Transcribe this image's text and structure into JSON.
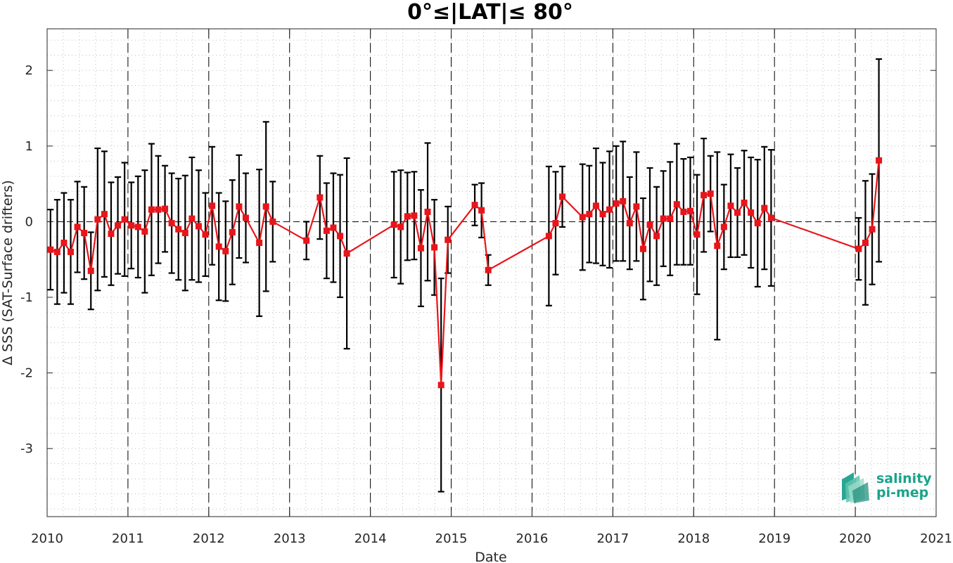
{
  "chart_data": {
    "type": "line",
    "title": "0°≤|LAT|≤ 80°",
    "xlabel": "Date",
    "ylabel": "Δ SSS (SAT-Surface drifters)",
    "xlim": [
      2010,
      2021
    ],
    "ylim": [
      -3.9,
      2.55
    ],
    "x_ticks": [
      "2010",
      "2011",
      "2012",
      "2013",
      "2014",
      "2015",
      "2016",
      "2017",
      "2018",
      "2019",
      "2020",
      "2021"
    ],
    "y_ticks": [
      "2",
      "1",
      "0",
      "-1",
      "-2",
      "-3"
    ],
    "grid": "dotted minor grid",
    "year_separators": "dashed vertical lines at each year",
    "zero_line": "dashed horizontal line at 0",
    "series": [
      {
        "color": "#e8151b",
        "marker": "square",
        "error_bar_color": "#000000",
        "points": [
          {
            "x": "2010-01",
            "y": -0.37,
            "err": 0.53
          },
          {
            "x": "2010-02",
            "y": -0.4,
            "err": 0.69
          },
          {
            "x": "2010-03",
            "y": -0.28,
            "err": 0.66
          },
          {
            "x": "2010-04",
            "y": -0.4,
            "err": 0.69
          },
          {
            "x": "2010-05",
            "y": -0.07,
            "err": 0.6
          },
          {
            "x": "2010-06",
            "y": -0.15,
            "err": 0.61
          },
          {
            "x": "2010-07",
            "y": -0.65,
            "err": 0.51
          },
          {
            "x": "2010-08",
            "y": 0.03,
            "err": 0.94
          },
          {
            "x": "2010-09",
            "y": 0.1,
            "err": 0.83
          },
          {
            "x": "2010-10",
            "y": -0.16,
            "err": 0.68
          },
          {
            "x": "2010-11",
            "y": -0.05,
            "err": 0.64
          },
          {
            "x": "2010-12",
            "y": 0.03,
            "err": 0.75
          },
          {
            "x": "2011-01",
            "y": -0.05,
            "err": 0.57
          },
          {
            "x": "2011-02",
            "y": -0.07,
            "err": 0.67
          },
          {
            "x": "2011-03",
            "y": -0.13,
            "err": 0.81
          },
          {
            "x": "2011-04",
            "y": 0.16,
            "err": 0.87
          },
          {
            "x": "2011-05",
            "y": 0.16,
            "err": 0.71
          },
          {
            "x": "2011-06",
            "y": 0.17,
            "err": 0.57
          },
          {
            "x": "2011-07",
            "y": -0.02,
            "err": 0.66
          },
          {
            "x": "2011-08",
            "y": -0.1,
            "err": 0.67
          },
          {
            "x": "2011-09",
            "y": -0.15,
            "err": 0.76
          },
          {
            "x": "2011-10",
            "y": 0.04,
            "err": 0.81
          },
          {
            "x": "2011-11",
            "y": -0.06,
            "err": 0.74
          },
          {
            "x": "2011-12",
            "y": -0.17,
            "err": 0.55
          },
          {
            "x": "2012-01",
            "y": 0.21,
            "err": 0.78
          },
          {
            "x": "2012-02",
            "y": -0.33,
            "err": 0.71
          },
          {
            "x": "2012-03",
            "y": -0.39,
            "err": 0.66
          },
          {
            "x": "2012-04",
            "y": -0.14,
            "err": 0.69
          },
          {
            "x": "2012-05",
            "y": 0.2,
            "err": 0.68
          },
          {
            "x": "2012-06",
            "y": 0.05,
            "err": 0.59
          },
          {
            "x": "2012-08",
            "y": -0.28,
            "err": 0.97
          },
          {
            "x": "2012-09",
            "y": 0.2,
            "err": 1.12
          },
          {
            "x": "2012-10",
            "y": 0.0,
            "err": 0.53
          },
          {
            "x": "2013-03",
            "y": -0.25,
            "err": 0.25
          },
          {
            "x": "2013-05",
            "y": 0.32,
            "err": 0.55
          },
          {
            "x": "2013-06",
            "y": -0.12,
            "err": 0.63
          },
          {
            "x": "2013-07",
            "y": -0.08,
            "err": 0.72
          },
          {
            "x": "2013-08",
            "y": -0.19,
            "err": 0.81
          },
          {
            "x": "2013-09",
            "y": -0.42,
            "err": 1.26
          },
          {
            "x": "2014-04",
            "y": -0.04,
            "err": 0.7
          },
          {
            "x": "2014-05",
            "y": -0.07,
            "err": 0.75
          },
          {
            "x": "2014-06",
            "y": 0.07,
            "err": 0.58
          },
          {
            "x": "2014-07",
            "y": 0.08,
            "err": 0.58
          },
          {
            "x": "2014-08",
            "y": -0.35,
            "err": 0.77
          },
          {
            "x": "2014-09",
            "y": 0.13,
            "err": 0.91
          },
          {
            "x": "2014-10",
            "y": -0.34,
            "err": 0.63
          },
          {
            "x": "2014-11",
            "y": -2.16,
            "err": 1.41
          },
          {
            "x": "2014-12",
            "y": -0.24,
            "err": 0.44
          },
          {
            "x": "2015-04",
            "y": 0.22,
            "err": 0.27
          },
          {
            "x": "2015-05",
            "y": 0.15,
            "err": 0.36
          },
          {
            "x": "2015-06",
            "y": -0.64,
            "err": 0.2
          },
          {
            "x": "2016-03",
            "y": -0.19,
            "err": 0.92
          },
          {
            "x": "2016-04",
            "y": -0.02,
            "err": 0.68
          },
          {
            "x": "2016-05",
            "y": 0.33,
            "err": 0.4
          },
          {
            "x": "2016-08",
            "y": 0.06,
            "err": 0.7
          },
          {
            "x": "2016-09",
            "y": 0.1,
            "err": 0.64
          },
          {
            "x": "2016-10",
            "y": 0.21,
            "err": 0.76
          },
          {
            "x": "2016-11",
            "y": 0.1,
            "err": 0.68
          },
          {
            "x": "2016-12",
            "y": 0.16,
            "err": 0.77
          },
          {
            "x": "2017-01",
            "y": 0.24,
            "err": 0.76
          },
          {
            "x": "2017-02",
            "y": 0.27,
            "err": 0.79
          },
          {
            "x": "2017-03",
            "y": -0.02,
            "err": 0.61
          },
          {
            "x": "2017-04",
            "y": 0.2,
            "err": 0.72
          },
          {
            "x": "2017-05",
            "y": -0.36,
            "err": 0.67
          },
          {
            "x": "2017-06",
            "y": -0.04,
            "err": 0.75
          },
          {
            "x": "2017-07",
            "y": -0.19,
            "err": 0.65
          },
          {
            "x": "2017-08",
            "y": 0.04,
            "err": 0.63
          },
          {
            "x": "2017-09",
            "y": 0.04,
            "err": 0.75
          },
          {
            "x": "2017-10",
            "y": 0.23,
            "err": 0.8
          },
          {
            "x": "2017-11",
            "y": 0.13,
            "err": 0.7
          },
          {
            "x": "2017-12",
            "y": 0.14,
            "err": 0.71
          },
          {
            "x": "2018-01",
            "y": -0.17,
            "err": 0.79
          },
          {
            "x": "2018-02",
            "y": 0.35,
            "err": 0.75
          },
          {
            "x": "2018-03",
            "y": 0.37,
            "err": 0.5
          },
          {
            "x": "2018-04",
            "y": -0.32,
            "err": 1.24
          },
          {
            "x": "2018-05",
            "y": -0.07,
            "err": 0.56
          },
          {
            "x": "2018-06",
            "y": 0.21,
            "err": 0.68
          },
          {
            "x": "2018-07",
            "y": 0.12,
            "err": 0.59
          },
          {
            "x": "2018-08",
            "y": 0.25,
            "err": 0.69
          },
          {
            "x": "2018-09",
            "y": 0.12,
            "err": 0.73
          },
          {
            "x": "2018-10",
            "y": -0.02,
            "err": 0.84
          },
          {
            "x": "2018-11",
            "y": 0.18,
            "err": 0.81
          },
          {
            "x": "2018-12",
            "y": 0.05,
            "err": 0.9
          },
          {
            "x": "2020-01",
            "y": -0.36,
            "err": 0.41
          },
          {
            "x": "2020-02",
            "y": -0.28,
            "err": 0.82
          },
          {
            "x": "2020-03",
            "y": -0.1,
            "err": 0.73
          },
          {
            "x": "2020-04",
            "y": 0.81,
            "err": 1.34
          }
        ]
      }
    ]
  },
  "logo": {
    "line1": "salinity",
    "line2": "pi-mep",
    "color": "#1aa38a"
  }
}
